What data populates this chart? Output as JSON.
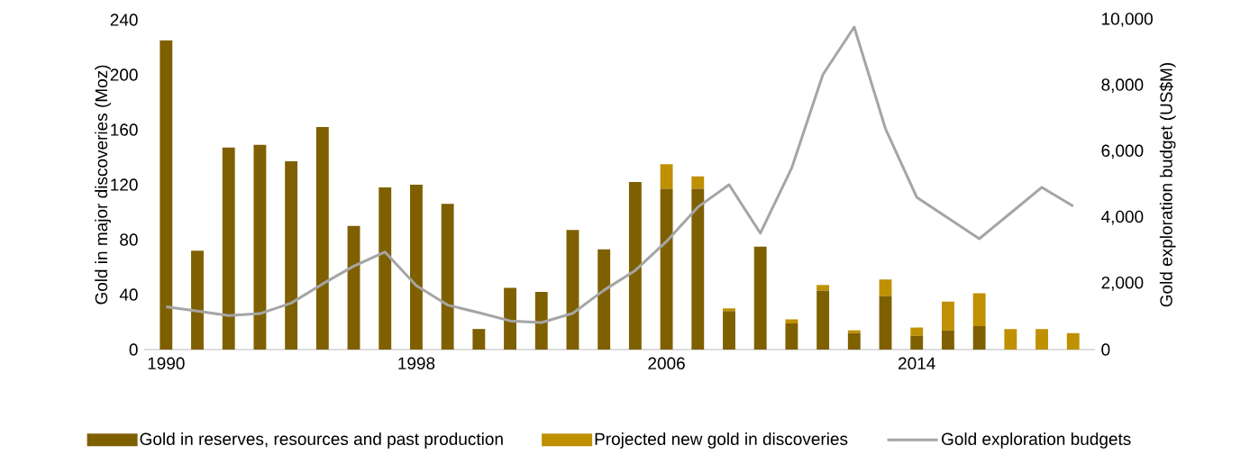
{
  "chart_data": {
    "type": "bar",
    "stacked": true,
    "x": [
      1990,
      1991,
      1992,
      1993,
      1994,
      1995,
      1996,
      1997,
      1998,
      1999,
      2000,
      2001,
      2002,
      2003,
      2004,
      2005,
      2006,
      2007,
      2008,
      2009,
      2010,
      2011,
      2012,
      2013,
      2014,
      2015,
      2016,
      2017,
      2018,
      2019
    ],
    "xlim": [
      1989.3,
      2019.7
    ],
    "xticks": [
      1990,
      1998,
      2006,
      2014
    ],
    "ylim": [
      0,
      240
    ],
    "yticks": [
      0,
      40,
      80,
      120,
      160,
      200,
      240
    ],
    "y2lim": [
      0,
      10000
    ],
    "y2ticks": [
      0,
      {
        "value": 2000,
        "label": "2,000"
      },
      {
        "value": 4000,
        "label": "4,000"
      },
      {
        "value": 6000,
        "label": "6,000"
      },
      {
        "value": 8000,
        "label": "8,000"
      },
      {
        "value": 10000,
        "label": "10,000"
      }
    ],
    "ylabel": "Gold in major discoveries (Moz)",
    "y2label": "Gold exploration budget (US$M)",
    "legend": "bottom",
    "grid": false,
    "series": [
      {
        "name": "Gold in reserves, resources and past production",
        "color": "#7f6000",
        "values": [
          225,
          72,
          147,
          149,
          137,
          162,
          90,
          118,
          120,
          106,
          15,
          45,
          42,
          87,
          73,
          122,
          117,
          117,
          28,
          75,
          19,
          43,
          12,
          39,
          10,
          14,
          17,
          0,
          0,
          0
        ]
      },
      {
        "name": "Projected new gold in discoveries",
        "color": "#bf9000",
        "values": [
          0,
          0,
          0,
          0,
          0,
          0,
          0,
          0,
          0,
          0,
          0,
          0,
          0,
          0,
          0,
          0,
          18,
          9,
          2,
          0,
          3,
          4,
          2,
          12,
          6,
          21,
          24,
          15,
          15,
          12
        ]
      },
      {
        "name": "Gold exploration budgets",
        "type": "line",
        "axis": "y2",
        "color": "#a5a5a5",
        "line_style": "solid",
        "marker": "none",
        "values": [
          1300,
          1170,
          1030,
          1090,
          1410,
          1990,
          2530,
          2960,
          1940,
          1350,
          1120,
          870,
          820,
          1100,
          1800,
          2400,
          3280,
          4320,
          5000,
          3530,
          5500,
          8340,
          9780,
          6700,
          4620,
          3990,
          3360,
          4140,
          4920,
          4350
        ]
      }
    ]
  }
}
